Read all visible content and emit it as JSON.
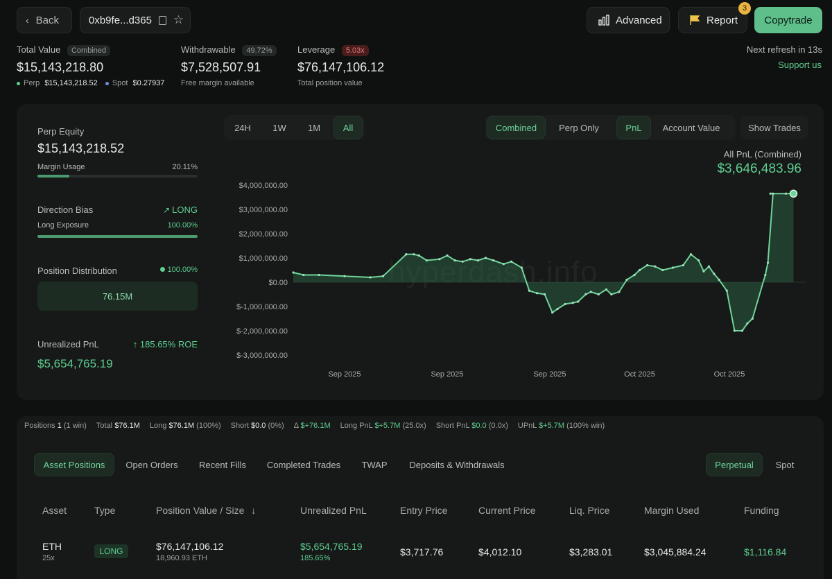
{
  "header": {
    "back_label": "Back",
    "address": "0xb9fe...d365",
    "advanced_label": "Advanced",
    "report_label": "Report",
    "report_badge": "3",
    "copytrade_label": "Copytrade",
    "refresh_text": "Next refresh in 13s",
    "support_label": "Support us"
  },
  "summary": {
    "total_value_label": "Total Value",
    "total_value_badge": "Combined",
    "total_value": "$15,143,218.80",
    "perp_label": "Perp",
    "perp_value": "$15,143,218.52",
    "spot_label": "Spot",
    "spot_value": "$0.27937",
    "withdrawable_label": "Withdrawable",
    "withdrawable_badge": "49.72%",
    "withdrawable_value": "$7,528,507.91",
    "withdrawable_sub": "Free margin available",
    "leverage_label": "Leverage",
    "leverage_badge": "5.03x",
    "leverage_value": "$76,147,106.12",
    "leverage_sub": "Total position value"
  },
  "side_panel": {
    "perp_equity_label": "Perp Equity",
    "perp_equity_value": "$15,143,218.52",
    "margin_usage_label": "Margin Usage",
    "margin_usage_value": "20.11%",
    "margin_usage_fraction": 0.2011,
    "direction_bias_label": "Direction Bias",
    "direction_bias_value": "LONG",
    "long_exposure_label": "Long Exposure",
    "long_exposure_value": "100.00%",
    "long_exposure_fraction": 1.0,
    "position_distribution_label": "Position Distribution",
    "position_distribution_pct": "100.00%",
    "position_distribution_value": "76.15M",
    "unrealized_pnl_label": "Unrealized PnL",
    "unrealized_roe": "185.65% ROE",
    "unrealized_pnl_value": "$5,654,765.19"
  },
  "chart_controls": {
    "time_ranges": [
      "24H",
      "1W",
      "1M",
      "All"
    ],
    "active_time_range": "All",
    "modes": [
      "Combined",
      "Perp Only"
    ],
    "active_mode": "Combined",
    "metrics": [
      "PnL",
      "Account Value"
    ],
    "active_metric": "PnL",
    "show_trades_label": "Show Trades",
    "pnl_title": "All PnL (Combined)",
    "pnl_value": "$3,646,483.96",
    "watermark": "hyperdash.info"
  },
  "chart_data": {
    "type": "area",
    "title": "All PnL (Combined)",
    "ylim": [
      -3000000,
      4000000
    ],
    "y_ticks": [
      "$4,000,000.00",
      "$3,000,000.00",
      "$2,000,000.00",
      "$1,000,000.00",
      "$0.00",
      "$-1,000,000.00",
      "$-2,000,000.00",
      "$-3,000,000.00"
    ],
    "y_tick_values": [
      4000000,
      3000000,
      2000000,
      1000000,
      0,
      -1000000,
      -2000000,
      -3000000
    ],
    "x_ticks": [
      "Sep 2025",
      "Sep 2025",
      "Sep 2025",
      "Oct 2025",
      "Oct 2025"
    ],
    "x_tick_positions": [
      0.1,
      0.3,
      0.5,
      0.675,
      0.85
    ],
    "x_range": [
      0,
      1
    ],
    "grid": false,
    "series": [
      {
        "x": [
          0,
          0.02,
          0.05,
          0.1,
          0.15,
          0.175,
          0.22,
          0.22,
          0.235,
          0.245,
          0.26,
          0.285,
          0.3,
          0.315,
          0.33,
          0.345,
          0.36,
          0.375,
          0.39,
          0.41,
          0.425,
          0.445,
          0.46,
          0.475,
          0.49,
          0.505,
          0.515,
          0.53,
          0.545,
          0.555,
          0.57,
          0.58,
          0.595,
          0.61,
          0.62,
          0.635,
          0.65,
          0.665,
          0.675,
          0.69,
          0.705,
          0.72,
          0.74,
          0.76,
          0.775,
          0.79,
          0.8,
          0.81,
          0.82,
          0.83,
          0.845,
          0.86,
          0.875,
          0.885,
          0.895,
          0.92,
          0.925,
          0.935,
          0.93,
          0.96,
          0.97,
          0.975
        ],
        "y": [
          400000,
          300000,
          300000,
          250000,
          200000,
          250000,
          1150000,
          1150000,
          1150000,
          1100000,
          900000,
          950000,
          1100000,
          900000,
          850000,
          950000,
          900000,
          1000000,
          900000,
          750000,
          850000,
          600000,
          -350000,
          -450000,
          -500000,
          -1250000,
          -1100000,
          -900000,
          -850000,
          -800000,
          -500000,
          -400000,
          -500000,
          -300000,
          -500000,
          -400000,
          100000,
          300000,
          500000,
          700000,
          650000,
          500000,
          600000,
          700000,
          1150000,
          900000,
          450000,
          650000,
          350000,
          100000,
          -350000,
          -2000000,
          -2000000,
          -1700000,
          -1500000,
          300000,
          800000,
          3650000,
          3650000,
          3650000,
          3650000,
          3650000
        ]
      }
    ]
  },
  "stats_bar": [
    {
      "label": "Positions",
      "value": "1",
      "extra": "(1 win)",
      "green": false
    },
    {
      "label": "Total",
      "value": "$76.1M",
      "extra": "",
      "green": false
    },
    {
      "label": "Long",
      "value": "$76.1M",
      "extra": "(100%)",
      "green": false
    },
    {
      "label": "Short",
      "value": "$0.0",
      "extra": "(0%)",
      "green": false
    },
    {
      "label": "Δ",
      "value": "$+76.1M",
      "extra": "",
      "green": true
    },
    {
      "label": "Long PnL",
      "value": "$+5.7M",
      "extra": "(25.0x)",
      "green": true
    },
    {
      "label": "Short PnL",
      "value": "$0.0",
      "extra": "(0.0x)",
      "green": true
    },
    {
      "label": "UPnL",
      "value": "$+5.7M",
      "extra": "(100% win)",
      "green": true
    }
  ],
  "table_tabs": [
    "Asset Positions",
    "Open Orders",
    "Recent Fills",
    "Completed Trades",
    "TWAP",
    "Deposits & Withdrawals"
  ],
  "active_table_tab": "Asset Positions",
  "market_tabs": [
    "Perpetual",
    "Spot"
  ],
  "active_market_tab": "Perpetual",
  "table": {
    "headers": [
      "Asset",
      "Type",
      "Position Value / Size",
      "Unrealized PnL",
      "Entry Price",
      "Current Price",
      "Liq. Price",
      "Margin Used",
      "Funding"
    ],
    "rows": [
      {
        "asset": "ETH",
        "leverage": "25x",
        "type": "LONG",
        "position_value": "$76,147,106.12",
        "position_size": "18,960.93 ETH",
        "unrealized_pnl": "$5,654,765.19",
        "unrealized_pct": "185.65%",
        "entry_price": "$3,717.76",
        "current_price": "$4,012.10",
        "liq_price": "$3,283.01",
        "margin_used": "$3,045,884.24",
        "funding": "$1,116.84"
      }
    ]
  },
  "colors": {
    "accent": "#5fce91",
    "negative_badge": "#4a1c1c",
    "background": "#0f1110"
  }
}
